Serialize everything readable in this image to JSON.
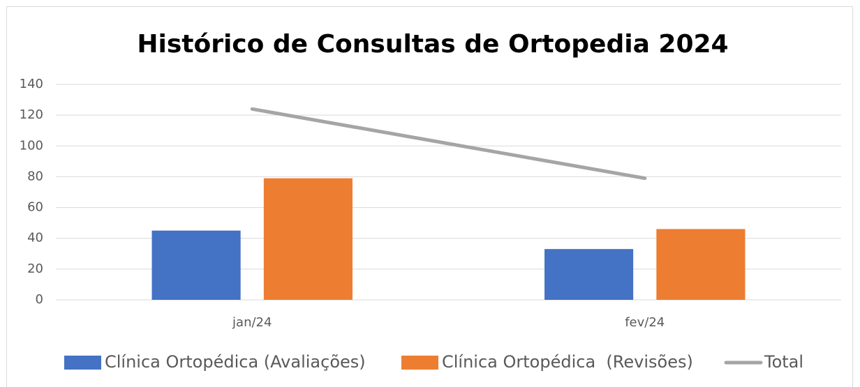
{
  "chart_data": {
    "type": "bar",
    "title": "Histórico de Consultas de Ortopedia 2024",
    "categories": [
      "jan/24",
      "fev/24"
    ],
    "series": [
      {
        "name": "Clínica Ortopédica (Avaliações)",
        "color": "#4472c4",
        "values": [
          45,
          33
        ]
      },
      {
        "name": "Clínica Ortopédica  (Revisões)",
        "color": "#ed7d31",
        "values": [
          79,
          46
        ]
      },
      {
        "name": "Total",
        "color": "#a5a5a5",
        "type": "line",
        "values": [
          124,
          79
        ]
      }
    ],
    "ylim": [
      0,
      140
    ],
    "yticks": [
      0,
      20,
      40,
      60,
      80,
      100,
      120,
      140
    ],
    "grid": true,
    "legend": "bottom"
  }
}
